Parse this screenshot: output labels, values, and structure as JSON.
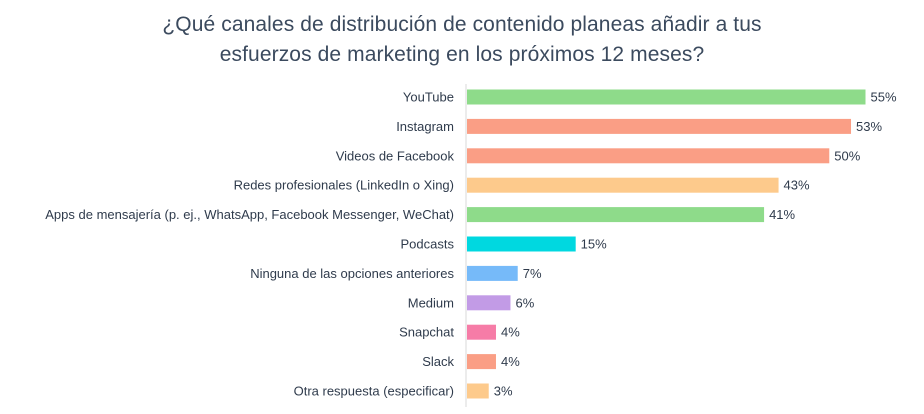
{
  "chart_data": {
    "type": "bar",
    "orientation": "horizontal",
    "title_line1": "¿Qué canales de distribución de contenido planeas añadir a tus",
    "title_line2": "esfuerzos de marketing en los próximos 12 meses?",
    "categories": [
      "YouTube",
      "Instagram",
      "Videos de Facebook",
      "Redes profesionales (LinkedIn o Xing)",
      "Apps de mensajería (p. ej., WhatsApp, Facebook Messenger, WeChat)",
      "Podcasts",
      "Ninguna de las opciones anteriores",
      "Medium",
      "Snapchat",
      "Slack",
      "Otra respuesta (especificar)"
    ],
    "values": [
      55,
      53,
      50,
      43,
      41,
      15,
      7,
      6,
      4,
      4,
      3
    ],
    "value_labels": [
      "55%",
      "53%",
      "50%",
      "43%",
      "41%",
      "15%",
      "7%",
      "6%",
      "4%",
      "4%",
      "3%"
    ],
    "colors": [
      "#8edb8a",
      "#fa9e85",
      "#fa9e85",
      "#fdca8c",
      "#8edb8a",
      "#00d8e0",
      "#76baf9",
      "#c29be6",
      "#f67ca7",
      "#fa9e85",
      "#fdca8c"
    ],
    "xlim": [
      0,
      57
    ],
    "grid": false,
    "legend": "none"
  }
}
